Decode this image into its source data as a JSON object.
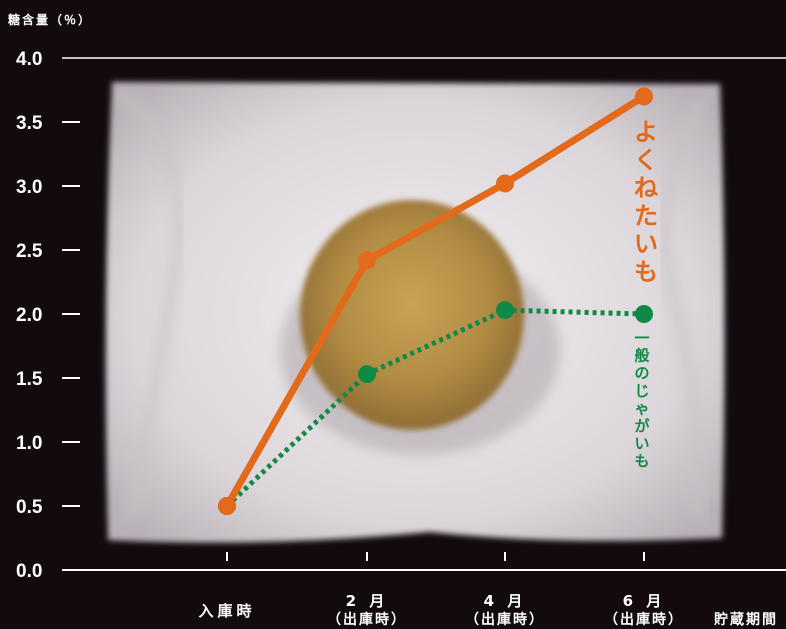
{
  "chart_data": {
    "type": "line",
    "title": "",
    "ylabel": "糖含量（％）",
    "xlabel": "貯蔵期間",
    "ylim": [
      0,
      4.0
    ],
    "yticks": [
      "0.0",
      "0.5",
      "1.0",
      "1.5",
      "2.0",
      "2.5",
      "3.0",
      "3.5",
      "4.0"
    ],
    "categories": [
      {
        "main": "入庫時",
        "sub": ""
      },
      {
        "main": "2 月",
        "sub": "（出庫時）"
      },
      {
        "main": "4 月",
        "sub": "（出庫時）"
      },
      {
        "main": "6 月",
        "sub": "（出庫時）"
      }
    ],
    "series": [
      {
        "name": "よくねたいも",
        "values": [
          0.5,
          2.42,
          3.02,
          3.7
        ],
        "color": "#e36a1b",
        "style": "solid"
      },
      {
        "name": "一般のじゃがいも",
        "values": [
          0.5,
          1.53,
          2.03,
          2.0
        ],
        "color": "#0f8a46",
        "style": "dotted"
      }
    ],
    "grid": false,
    "legend": "inline-right"
  }
}
